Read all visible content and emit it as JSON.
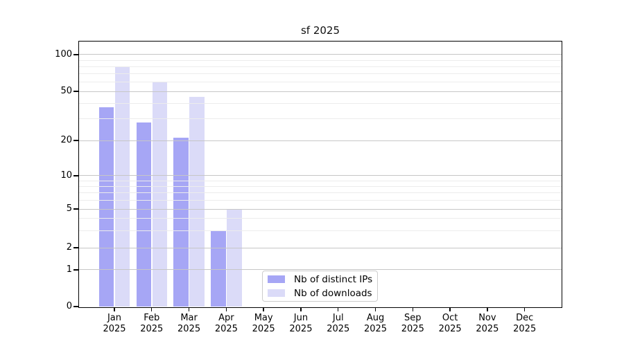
{
  "title": "sf 2025",
  "chart_data": {
    "type": "bar",
    "title": "sf 2025",
    "x_labels": [
      [
        "Jan",
        "2025"
      ],
      [
        "Feb",
        "2025"
      ],
      [
        "Mar",
        "2025"
      ],
      [
        "Apr",
        "2025"
      ],
      [
        "May",
        "2025"
      ],
      [
        "Jun",
        "2025"
      ],
      [
        "Jul",
        "2025"
      ],
      [
        "Aug",
        "2025"
      ],
      [
        "Sep",
        "2025"
      ],
      [
        "Oct",
        "2025"
      ],
      [
        "Nov",
        "2025"
      ],
      [
        "Dec",
        "2025"
      ]
    ],
    "series": [
      {
        "name": "Nb of distinct IPs",
        "color": "#a6a6f5",
        "values": [
          37,
          28,
          21,
          3,
          0,
          0,
          0,
          0,
          0,
          0,
          0,
          0
        ]
      },
      {
        "name": "Nb of downloads",
        "color": "#dbdbf8",
        "values": [
          80,
          60,
          45,
          5,
          0,
          0,
          0,
          0,
          0,
          0,
          0,
          0
        ]
      }
    ],
    "y_axis": {
      "scale": "symlog",
      "ticks": [
        0,
        1,
        2,
        5,
        10,
        20,
        50,
        100
      ],
      "minor_ticks": [
        3,
        4,
        6,
        7,
        8,
        9,
        30,
        40,
        60,
        70,
        80,
        90
      ]
    },
    "legend": {
      "entries": [
        "Nb of distinct IPs",
        "Nb of downloads"
      ],
      "position": "bottom-center"
    },
    "grid": {
      "major": true,
      "minor": true
    }
  },
  "colors": {
    "background": "#ffffff",
    "bar_distinct_ips": "#a6a6f5",
    "bar_downloads": "#dbdbf8",
    "major_grid": "#c6c6c6",
    "minor_grid": "#ececec",
    "axis_frame": "#000000",
    "legend_border": "#cccccc",
    "text": "#000000"
  }
}
